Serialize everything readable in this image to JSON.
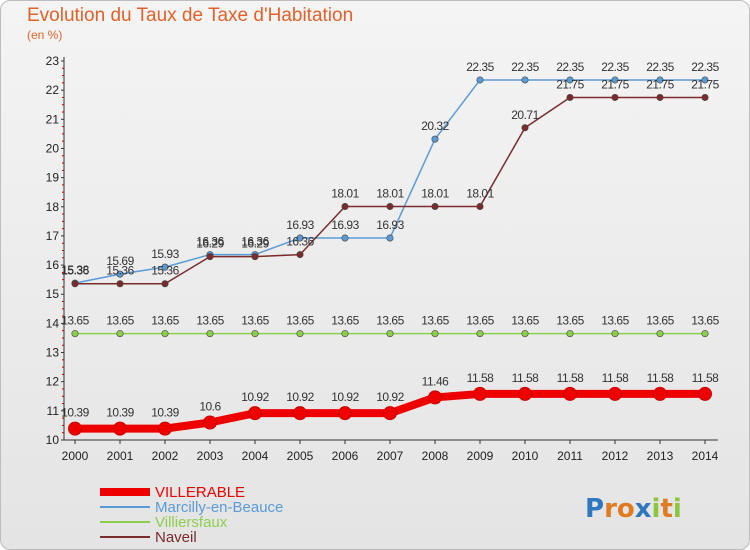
{
  "chart_data": {
    "type": "line",
    "title": "Evolution du Taux de Taxe d'Habitation",
    "subtitle": "(en %)",
    "x": [
      "2000",
      "2001",
      "2002",
      "2003",
      "2004",
      "2005",
      "2006",
      "2007",
      "2008",
      "2009",
      "2010",
      "2011",
      "2012",
      "2013",
      "2014"
    ],
    "yticks": [
      10,
      11,
      12,
      13,
      14,
      15,
      16,
      17,
      18,
      19,
      20,
      21,
      22,
      23
    ],
    "ylim": [
      10,
      23
    ],
    "grid": false,
    "legend_position": "bottom-left",
    "series": [
      {
        "name": "VILLERABLE",
        "color": "#ee0000",
        "values": [
          10.39,
          10.39,
          10.39,
          10.6,
          10.92,
          10.92,
          10.92,
          10.92,
          11.46,
          11.58,
          11.58,
          11.58,
          11.58,
          11.58,
          11.58
        ],
        "labels": [
          "10.39",
          "10.39",
          "10.39",
          "10.6",
          "10.92",
          "10.92",
          "10.92",
          "10.92",
          "11.46",
          "11.58",
          "11.58",
          "11.58",
          "11.58",
          "11.58",
          "11.58"
        ]
      },
      {
        "name": "Marcilly-en-Beauce",
        "color": "#5b9bd5",
        "values": [
          15.38,
          15.69,
          15.93,
          16.36,
          16.36,
          16.93,
          16.93,
          16.93,
          20.32,
          22.35,
          22.35,
          22.35,
          22.35,
          22.35,
          22.35
        ],
        "labels": [
          "15.38",
          "15.69",
          "15.93",
          "16.36",
          "16.36",
          "16.93",
          "16.93",
          "16.93",
          "20.32",
          "22.35",
          "22.35",
          "22.35",
          "22.35",
          "22.35",
          "22.35"
        ]
      },
      {
        "name": "Villiersfaux",
        "color": "#8ccf4d",
        "values": [
          13.65,
          13.65,
          13.65,
          13.65,
          13.65,
          13.65,
          13.65,
          13.65,
          13.65,
          13.65,
          13.65,
          13.65,
          13.65,
          13.65,
          13.65
        ],
        "labels": [
          "13.65",
          "13.65",
          "13.65",
          "13.65",
          "13.65",
          "13.65",
          "13.65",
          "13.65",
          "13.65",
          "13.65",
          "13.65",
          "13.65",
          "13.65",
          "13.65",
          "13.65"
        ]
      },
      {
        "name": "Naveil",
        "color": "#7a2b2b",
        "values": [
          15.36,
          15.36,
          15.36,
          16.29,
          16.29,
          16.36,
          18.01,
          18.01,
          18.01,
          18.01,
          20.71,
          21.75,
          21.75,
          21.75,
          21.75
        ],
        "labels": [
          "15.36",
          "15.36",
          "15.36",
          "16.29",
          "16.29",
          "16.36",
          "18.01",
          "18.01",
          "18.01",
          "18.01",
          "20.71",
          "21.75",
          "21.75",
          "21.75",
          "21.75"
        ]
      }
    ]
  },
  "logo": {
    "p": "P",
    "r": "r",
    "o": "o",
    "x": "x",
    "i1": "i",
    "t": "t",
    "i2": "i"
  }
}
